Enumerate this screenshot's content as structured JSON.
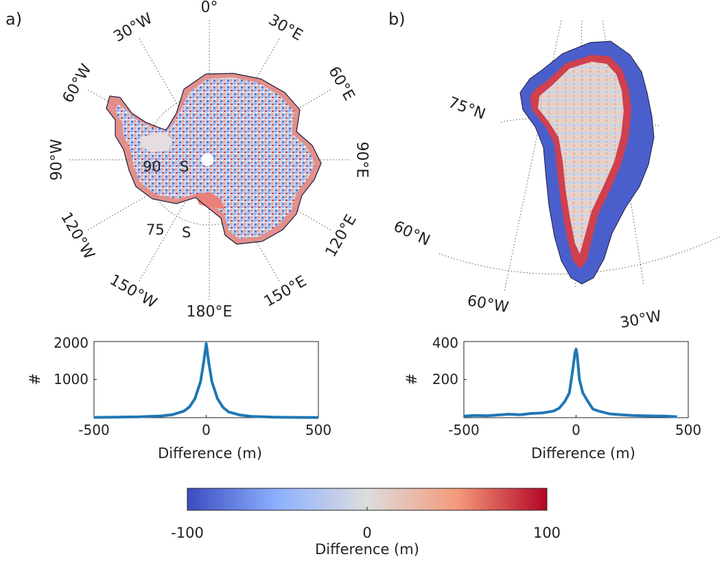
{
  "panel_a": {
    "label": "a)",
    "lon_labels": [
      {
        "text": "0°",
        "angle": 0
      },
      {
        "text": "30°E",
        "angle": 30
      },
      {
        "text": "60°E",
        "angle": 60
      },
      {
        "text": "90°E",
        "angle": 90
      },
      {
        "text": "120°E",
        "angle": 120
      },
      {
        "text": "150°E",
        "angle": 150
      },
      {
        "text": "180°E",
        "angle": 180
      },
      {
        "text": "150°W",
        "angle": 210
      },
      {
        "text": "120°W",
        "angle": 240
      },
      {
        "text": "90°W",
        "angle": 270
      },
      {
        "text": "60°W",
        "angle": 300
      },
      {
        "text": "30°W",
        "angle": 330
      }
    ],
    "lat_labels": [
      {
        "text": "90",
        "unit": "S"
      },
      {
        "text": "75",
        "unit": "S"
      }
    ]
  },
  "panel_b": {
    "label": "b)",
    "lat_labels": [
      "75°N",
      "60°N"
    ],
    "lon_labels": [
      "60°W",
      "30°W"
    ]
  },
  "chart_data": [
    {
      "type": "line",
      "panel": "a",
      "xlabel": "Difference (m)",
      "ylabel": "#",
      "xlim": [
        -500,
        500
      ],
      "ylim": [
        0,
        2000
      ],
      "xticks": [
        -500,
        0,
        500
      ],
      "yticks": [
        1000,
        2000
      ],
      "x": [
        -500,
        -400,
        -300,
        -200,
        -150,
        -100,
        -75,
        -50,
        -25,
        -10,
        0,
        10,
        25,
        50,
        75,
        100,
        150,
        200,
        300,
        400,
        500
      ],
      "y": [
        8,
        12,
        22,
        45,
        80,
        170,
        280,
        500,
        950,
        1500,
        1950,
        1500,
        950,
        500,
        270,
        150,
        70,
        35,
        15,
        8,
        5
      ]
    },
    {
      "type": "line",
      "panel": "b",
      "xlabel": "Difference (m)",
      "ylabel": "#",
      "xlim": [
        -500,
        500
      ],
      "ylim": [
        0,
        400
      ],
      "xticks": [
        -500,
        0,
        500
      ],
      "yticks": [
        200,
        400
      ],
      "x": [
        -500,
        -450,
        -400,
        -350,
        -300,
        -250,
        -200,
        -150,
        -100,
        -75,
        -50,
        -30,
        -15,
        -5,
        0,
        5,
        15,
        30,
        50,
        75,
        100,
        150,
        200,
        250,
        300,
        400,
        450
      ],
      "y": [
        8,
        12,
        10,
        14,
        18,
        15,
        22,
        25,
        35,
        50,
        85,
        130,
        250,
        340,
        360,
        330,
        200,
        130,
        90,
        45,
        35,
        20,
        15,
        12,
        10,
        8,
        5
      ]
    },
    {
      "type": "heatmap",
      "panel": "colorbar",
      "xlabel": "Difference (m)",
      "range": [
        -100,
        100
      ],
      "ticks": [
        -100,
        0,
        100
      ],
      "colors": [
        "#3b4cc0",
        "#8db0fe",
        "#dddddd",
        "#f49a7b",
        "#b40426"
      ]
    }
  ]
}
